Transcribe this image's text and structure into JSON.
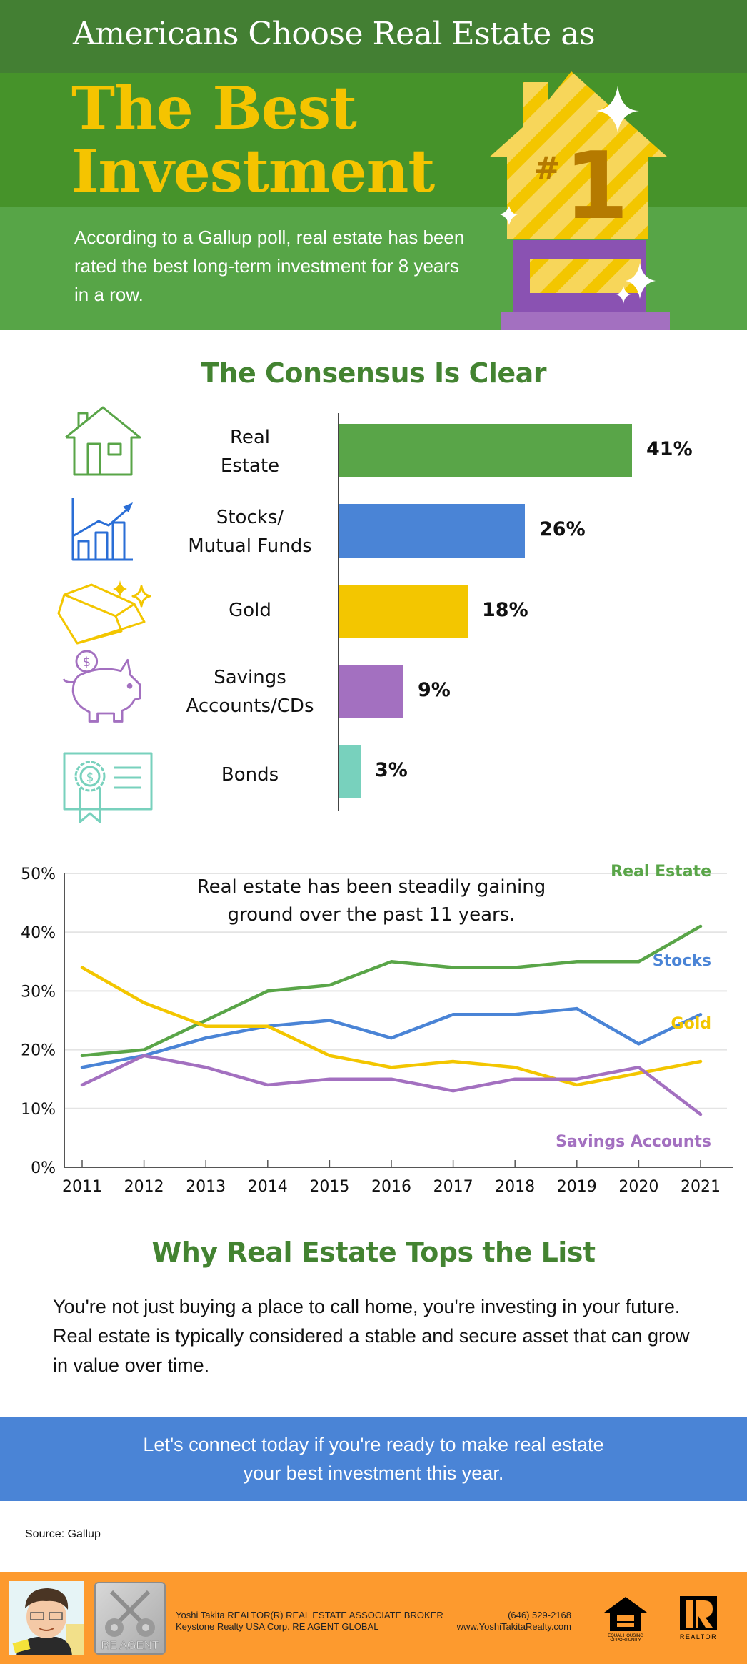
{
  "header": {
    "title_top": "Americans Choose Real Estate as",
    "title_main_line1": "The Best",
    "title_main_line2": "Investment",
    "intro": "According to a Gallup poll, real estate has been rated the best long-term investment for 8 years in a row.",
    "trophy_badge": "#1",
    "trophy_icon": "house-trophy-icon",
    "colors": {
      "band_dark": "#437f33",
      "band_mid": "#46932a",
      "band_light": "#57a547",
      "accent_yellow": "#f5c400",
      "trophy_purple": "#8a52b2"
    }
  },
  "consensus": {
    "title": "The Consensus Is Clear",
    "items": [
      {
        "label_line1": "Real",
        "label_line2": "Estate",
        "icon": "house-icon",
        "value": 41,
        "value_label": "41%",
        "color": "#59a548"
      },
      {
        "label_line1": "Stocks/",
        "label_line2": "Mutual Funds",
        "icon": "stock-chart-icon",
        "value": 26,
        "value_label": "26%",
        "color": "#4a84d6"
      },
      {
        "label_line1": "Gold",
        "label_line2": "",
        "icon": "gold-bar-icon",
        "value": 18,
        "value_label": "18%",
        "color": "#f3c600"
      },
      {
        "label_line1": "Savings",
        "label_line2": "Accounts/CDs",
        "icon": "piggy-bank-icon",
        "value": 9,
        "value_label": "9%",
        "color": "#a370c0"
      },
      {
        "label_line1": "Bonds",
        "label_line2": "",
        "icon": "bond-certificate-icon",
        "value": 3,
        "value_label": "3%",
        "color": "#78d1bd"
      }
    ]
  },
  "chart_data": [
    {
      "type": "bar",
      "orientation": "horizontal",
      "title": "The Consensus Is Clear",
      "categories": [
        "Real Estate",
        "Stocks/Mutual Funds",
        "Gold",
        "Savings Accounts/CDs",
        "Bonds"
      ],
      "values": [
        41,
        26,
        18,
        9,
        3
      ],
      "unit": "%",
      "xlim": [
        0,
        45
      ]
    },
    {
      "type": "line",
      "annotation": "Real estate has been steadily gaining ground over the past 11 years.",
      "x": [
        2011,
        2012,
        2013,
        2014,
        2015,
        2016,
        2017,
        2018,
        2019,
        2020,
        2021
      ],
      "xticks": [
        "2011",
        "2012",
        "2013",
        "2014",
        "2015",
        "2016",
        "2017",
        "2018",
        "2019",
        "2020",
        "2021"
      ],
      "yticks": [
        "0%",
        "10%",
        "20%",
        "30%",
        "40%",
        "50%"
      ],
      "ylim": [
        0,
        50
      ],
      "grid": true,
      "legend": "inline-right",
      "series": [
        {
          "name": "Real Estate",
          "color": "#59a548",
          "values": [
            19,
            20,
            25,
            30,
            31,
            35,
            34,
            34,
            35,
            35,
            41
          ]
        },
        {
          "name": "Stocks",
          "color": "#4a84d6",
          "values": [
            17,
            19,
            22,
            24,
            25,
            22,
            26,
            26,
            27,
            21,
            26
          ]
        },
        {
          "name": "Gold",
          "color": "#f3c600",
          "values": [
            34,
            28,
            24,
            24,
            19,
            17,
            18,
            17,
            14,
            16,
            18
          ]
        },
        {
          "name": "Savings Accounts",
          "color": "#a370c0",
          "values": [
            14,
            19,
            17,
            14,
            15,
            15,
            13,
            15,
            15,
            17,
            9
          ]
        }
      ]
    }
  ],
  "why": {
    "title": "Why Real Estate Tops the List",
    "body": "You're not just buying a place to call home, you're investing in your future. Real estate is typically considered a stable and secure asset that can grow in value over time."
  },
  "cta": {
    "text": "Let's connect today if you're ready to make real estate your best investment this year.",
    "color": "#4a84d6"
  },
  "source": "Source: Gallup",
  "footer": {
    "line1": "Yoshi Takita REALTOR(R) REAL ESTATE ASSOCIATE BROKER",
    "line2": "Keystone Realty USA Corp.  RE AGENT GLOBAL",
    "phone": "(646) 529-2168",
    "website": "www.YoshiTakitaRealty.com",
    "re_agent_logo_text": "RE AGENT",
    "eho_text_line1": "EQUAL HOUSING",
    "eho_text_line2": "OPPORTUNITY",
    "realtor_text": "REALTOR",
    "color": "#fd9a2e"
  }
}
